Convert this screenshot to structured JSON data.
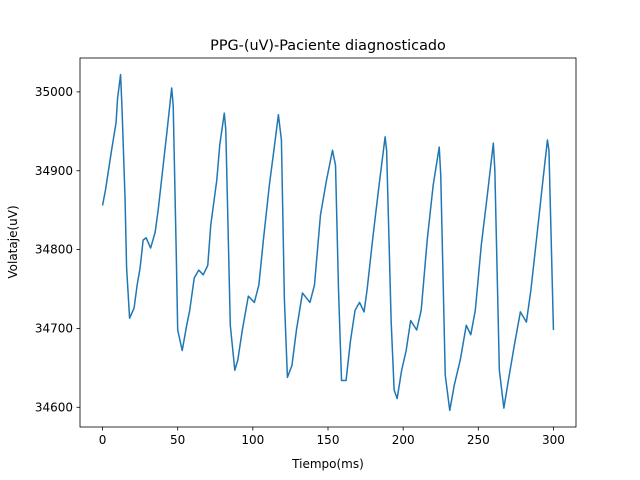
{
  "chart_data": {
    "type": "line",
    "title": "PPG-(uV)-Paciente diagnosticado",
    "xlabel": "Tiempo(ms)",
    "ylabel": "Volataje(uV)",
    "xlim": [
      -15,
      315
    ],
    "xticks": [
      0,
      50,
      100,
      150,
      200,
      250,
      300
    ],
    "ylim": [
      34575,
      35043
    ],
    "yticks": [
      34600,
      34700,
      34800,
      34900,
      35000
    ],
    "series": [
      {
        "color": "#1f77b4",
        "x": [
          0,
          2,
          6,
          9,
          10,
          12,
          13,
          15,
          16,
          18,
          21,
          23,
          25,
          27,
          29,
          32,
          35,
          37,
          40,
          43,
          46,
          47,
          49,
          50,
          53,
          56,
          58,
          61,
          64,
          67,
          70,
          72,
          76,
          78,
          81,
          82,
          85,
          88,
          90,
          93,
          97,
          101,
          104,
          107,
          111,
          114,
          117,
          119,
          121,
          123,
          126,
          129,
          133,
          138,
          141,
          145,
          149,
          153,
          155,
          157,
          159,
          162,
          165,
          168,
          171,
          174,
          176,
          180,
          184,
          188,
          189,
          192,
          194,
          196,
          199,
          202,
          205,
          209,
          212,
          216,
          220,
          224,
          225,
          228,
          231,
          234,
          238,
          242,
          245,
          248,
          252,
          256,
          260,
          261,
          264,
          267,
          270,
          274,
          278,
          282,
          285,
          289,
          293,
          296,
          297,
          300
        ],
        "values": [
          34856,
          34876,
          34926,
          34961,
          34992,
          35022,
          34977,
          34863,
          34777,
          34713,
          34726,
          34755,
          34777,
          34812,
          34815,
          34802,
          34822,
          34850,
          34901,
          34952,
          35005,
          34983,
          34799,
          34698,
          34672,
          34704,
          34723,
          34764,
          34774,
          34768,
          34780,
          34831,
          34888,
          34933,
          34973,
          34952,
          34704,
          34647,
          34660,
          34698,
          34741,
          34733,
          34755,
          34812,
          34882,
          34926,
          34971,
          34939,
          34736,
          34638,
          34653,
          34698,
          34745,
          34733,
          34755,
          34844,
          34888,
          34926,
          34907,
          34749,
          34634,
          34634,
          34685,
          34723,
          34733,
          34721,
          34749,
          34818,
          34882,
          34943,
          34926,
          34710,
          34622,
          34611,
          34647,
          34672,
          34710,
          34698,
          34723,
          34812,
          34882,
          34930,
          34895,
          34641,
          34596,
          34628,
          34660,
          34704,
          34692,
          34723,
          34806,
          34869,
          34935,
          34901,
          34647,
          34599,
          34634,
          34679,
          34721,
          34708,
          34749,
          34818,
          34888,
          34939,
          34926,
          34698
        ]
      }
    ]
  }
}
